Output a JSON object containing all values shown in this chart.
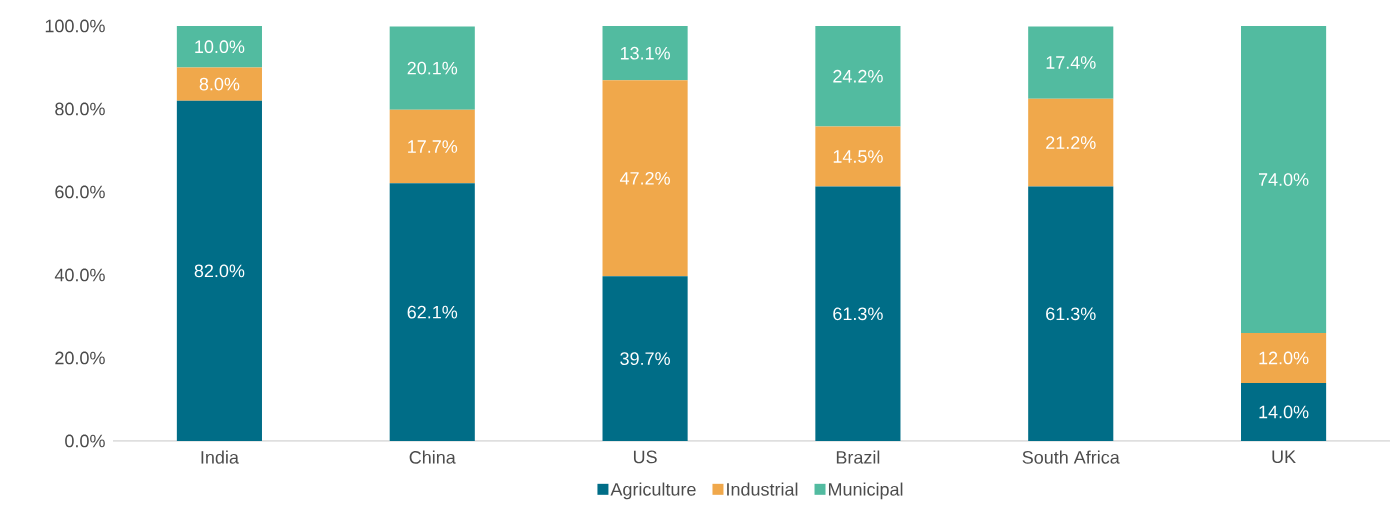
{
  "chart_data": {
    "type": "bar",
    "stacked": true,
    "categories": [
      "India",
      "China",
      "US",
      "Brazil",
      "South Africa",
      "UK"
    ],
    "series": [
      {
        "name": "Agriculture",
        "color": "#006d87",
        "values": [
          82.0,
          62.1,
          39.7,
          61.3,
          61.3,
          14.0
        ],
        "value_labels": [
          "82.0%",
          "62.1%",
          "39.7%",
          "61.3%",
          "61.3%",
          "14.0%"
        ]
      },
      {
        "name": "Industrial",
        "color": "#f0a84b",
        "values": [
          8.0,
          17.7,
          47.2,
          14.5,
          21.2,
          12.0
        ],
        "value_labels": [
          "8.0%",
          "17.7%",
          "47.2%",
          "14.5%",
          "21.2%",
          "12.0%"
        ]
      },
      {
        "name": "Municipal",
        "color": "#52bba0",
        "values": [
          10.0,
          20.1,
          13.1,
          24.2,
          17.4,
          74.0
        ],
        "value_labels": [
          "10.0%",
          "20.1%",
          "13.1%",
          "24.2%",
          "17.4%",
          "74.0%"
        ]
      }
    ],
    "ylim": [
      0,
      100
    ],
    "yticks": [
      {
        "value": 0,
        "label": "0.0%"
      },
      {
        "value": 20,
        "label": "20.0%"
      },
      {
        "value": 40,
        "label": "40.0%"
      },
      {
        "value": 60,
        "label": "60.0%"
      },
      {
        "value": 80,
        "label": "80.0%"
      },
      {
        "value": 100,
        "label": "100.0%"
      }
    ],
    "legend": "bottom"
  }
}
